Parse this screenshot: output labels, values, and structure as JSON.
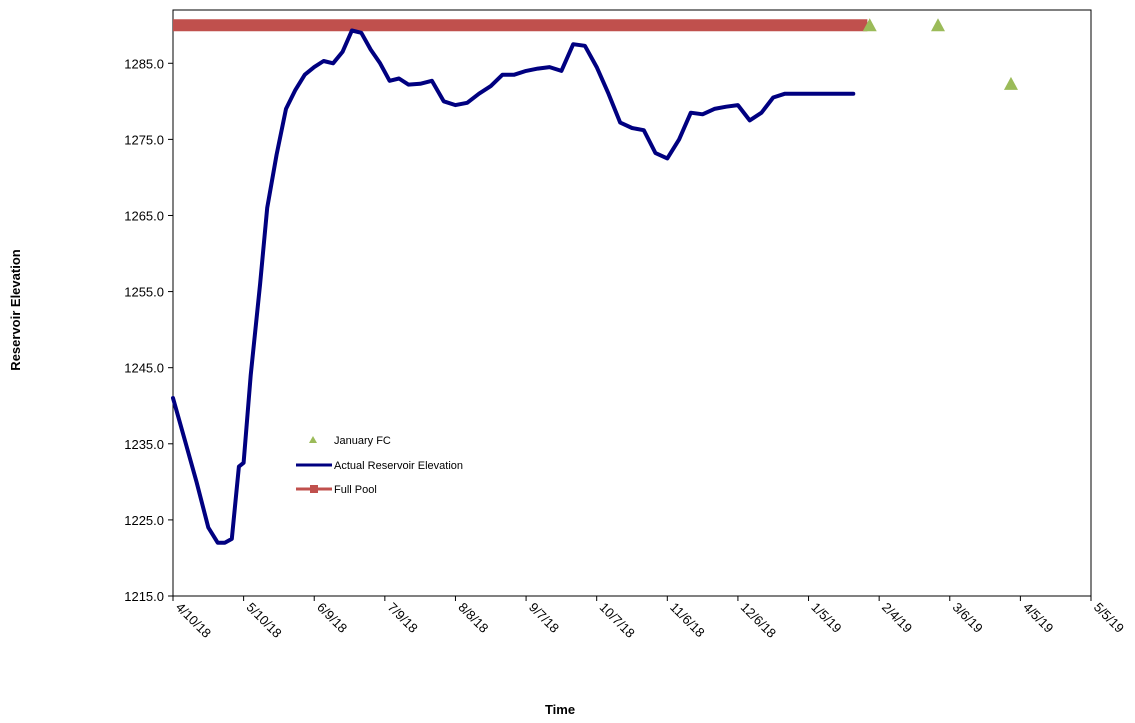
{
  "chart_data": {
    "type": "line",
    "xlabel": "Time",
    "ylabel": "Reservoir Elevation",
    "ylim": [
      1215,
      1292
    ],
    "y_ticks": [
      1215,
      1225,
      1235,
      1245,
      1255,
      1265,
      1275,
      1285
    ],
    "y_tick_labels": [
      "1215.0",
      "1225.0",
      "1235.0",
      "1245.0",
      "1255.0",
      "1265.0",
      "1275.0",
      "1285.0"
    ],
    "x_start": "4/10/18",
    "x_end": "5/5/19",
    "x_ticks": [
      "4/10/18",
      "5/10/18",
      "6/9/18",
      "7/9/18",
      "8/8/18",
      "9/7/18",
      "10/7/18",
      "11/6/18",
      "12/6/18",
      "1/5/19",
      "2/4/19",
      "3/6/19",
      "4/5/19",
      "5/5/19"
    ],
    "grid": false,
    "legend_position": "center-left",
    "series": [
      {
        "name": "January FC",
        "kind": "marker",
        "color": "#9bbb59",
        "marker": "triangle",
        "x": [
          "1/31/19",
          "3/1/19",
          "4/1/19"
        ],
        "y": [
          1290.0,
          1290.0,
          1282.3
        ]
      },
      {
        "name": "Actual Reservoir Elevation",
        "kind": "line",
        "color": "#000080",
        "x": [
          "4/10/18",
          "4/15/18",
          "4/20/18",
          "4/25/18",
          "4/29/18",
          "5/2/18",
          "5/5/18",
          "5/8/18",
          "5/10/18",
          "5/13/18",
          "5/17/18",
          "5/20/18",
          "5/24/18",
          "5/28/18",
          "6/1/18",
          "6/5/18",
          "6/9/18",
          "6/13/18",
          "6/17/18",
          "6/21/18",
          "6/25/18",
          "6/29/18",
          "7/3/18",
          "7/7/18",
          "7/11/18",
          "7/15/18",
          "7/19/18",
          "7/24/18",
          "7/29/18",
          "8/3/18",
          "8/8/18",
          "8/13/18",
          "8/18/18",
          "8/23/18",
          "8/28/18",
          "9/2/18",
          "9/7/18",
          "9/12/18",
          "9/17/18",
          "9/22/18",
          "9/27/18",
          "10/2/18",
          "10/7/18",
          "10/12/18",
          "10/17/18",
          "10/22/18",
          "10/27/18",
          "11/1/18",
          "11/6/18",
          "11/11/18",
          "11/16/18",
          "11/21/18",
          "11/26/18",
          "12/1/18",
          "12/6/18",
          "12/11/18",
          "12/16/18",
          "12/21/18",
          "12/26/18",
          "12/31/18",
          "1/5/19",
          "1/10/19",
          "1/15/19",
          "1/20/19",
          "1/24/19"
        ],
        "y": [
          1241.0,
          1235.5,
          1230.0,
          1224.0,
          1222.0,
          1222.0,
          1222.5,
          1232.0,
          1232.5,
          1244.0,
          1256.0,
          1266.0,
          1273.0,
          1279.0,
          1281.5,
          1283.5,
          1284.5,
          1285.3,
          1285.0,
          1286.5,
          1289.3,
          1289.0,
          1286.8,
          1285.0,
          1282.7,
          1283.0,
          1282.2,
          1282.3,
          1282.7,
          1280.0,
          1279.5,
          1279.8,
          1281.0,
          1282.0,
          1283.5,
          1283.5,
          1284.0,
          1284.3,
          1284.5,
          1284.0,
          1287.5,
          1287.3,
          1284.5,
          1281.0,
          1277.2,
          1276.5,
          1276.2,
          1273.2,
          1272.5,
          1275.0,
          1278.5,
          1278.3,
          1279.0,
          1279.3,
          1279.5,
          1277.5,
          1278.5,
          1280.5,
          1281.0,
          1281.0,
          1281.0,
          1281.0,
          1281.0,
          1281.0,
          1281.0
        ]
      },
      {
        "name": "Full Pool",
        "kind": "line",
        "color": "#c0504d",
        "x": [
          "4/10/18",
          "1/30/19"
        ],
        "y": [
          1290.0,
          1290.0
        ]
      }
    ]
  }
}
